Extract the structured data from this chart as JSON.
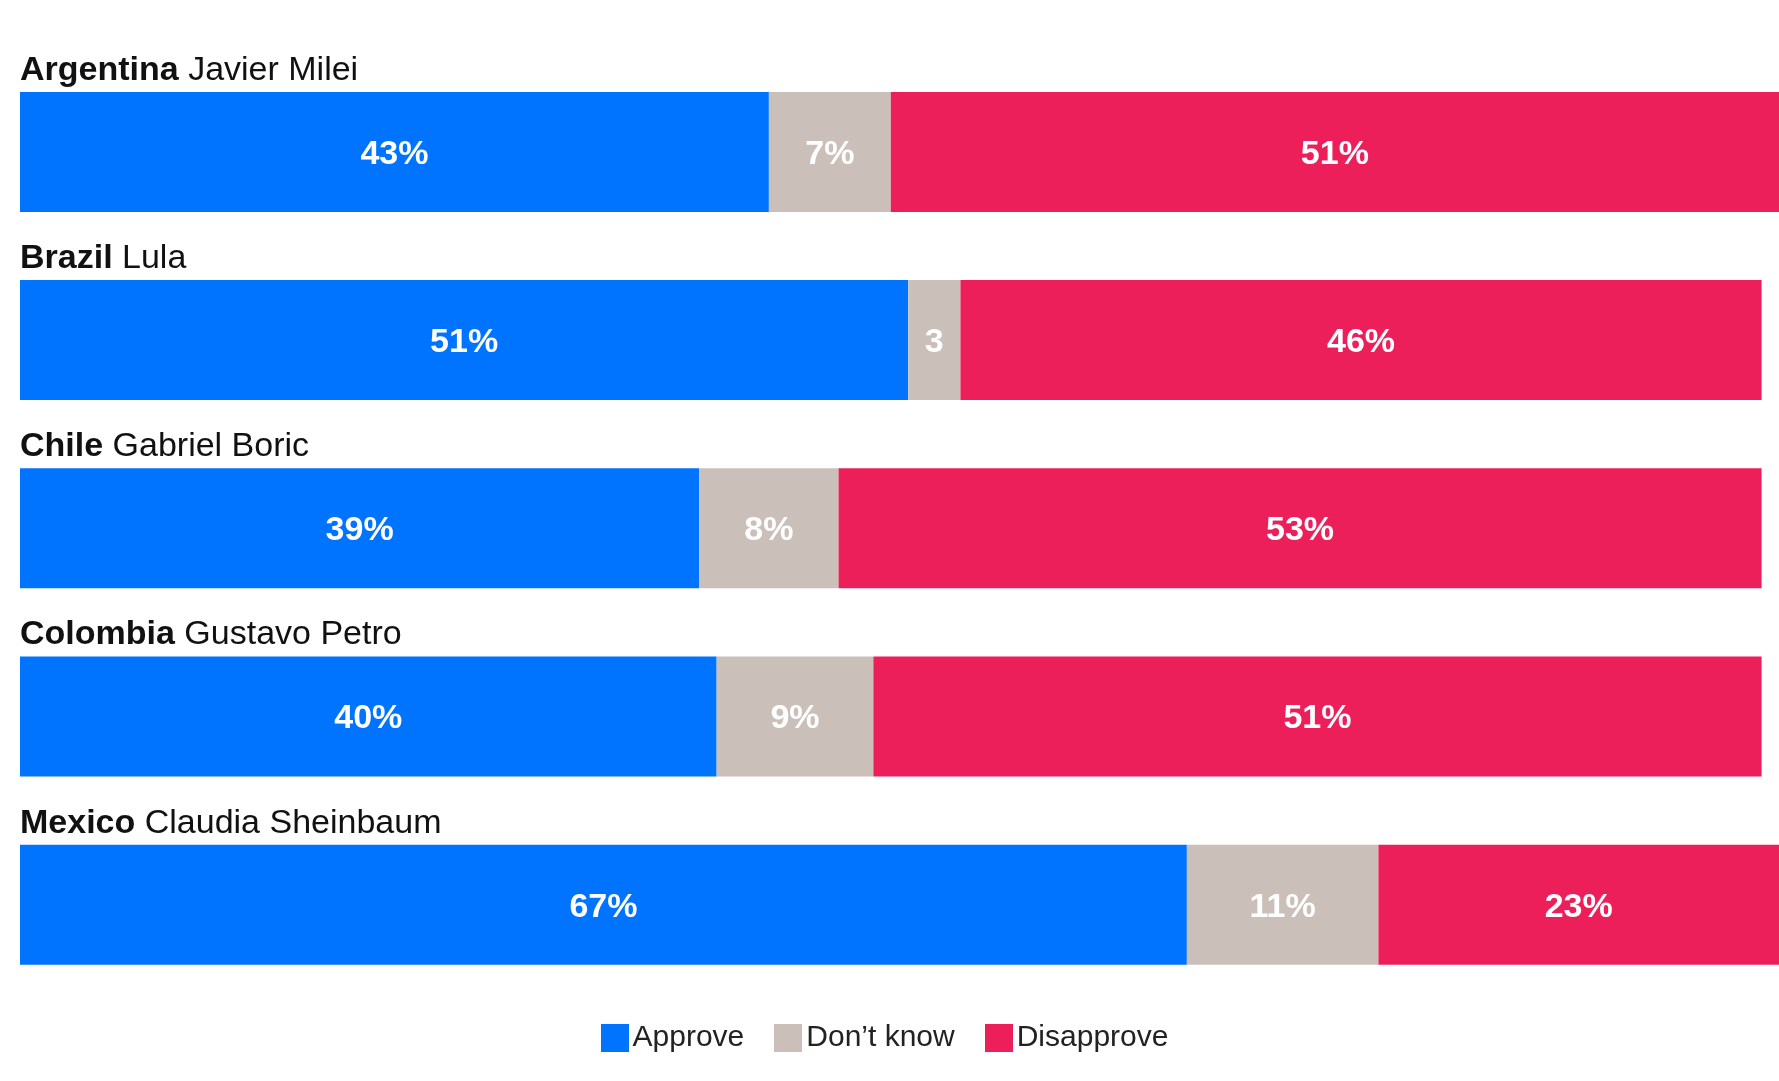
{
  "chart_data": {
    "type": "bar",
    "orientation": "horizontal",
    "stacked": true,
    "legend": "bottom",
    "categories": [
      "Argentina Javier Milei",
      "Brazil Lula",
      "Chile Gabriel Boric",
      "Colombia Gustavo Petro",
      "Mexico Claudia Sheinbaum"
    ],
    "series": [
      {
        "name": "Approve",
        "color": "#0073ff",
        "values": [
          43,
          51,
          39,
          40,
          67
        ],
        "value_labels": [
          "43%",
          "51%",
          "39%",
          "40%",
          "67%"
        ]
      },
      {
        "name": "Don’t know",
        "color": "#cbc0b9",
        "values": [
          7,
          3,
          8,
          9,
          11
        ],
        "value_labels": [
          "7%",
          "3",
          "8%",
          "9%",
          "11%"
        ]
      },
      {
        "name": "Disapprove",
        "color": "#ed1f5b",
        "values": [
          51,
          46,
          53,
          51,
          23
        ],
        "value_labels": [
          "51%",
          "46%",
          "53%",
          "51%",
          "23%"
        ]
      }
    ]
  }
}
